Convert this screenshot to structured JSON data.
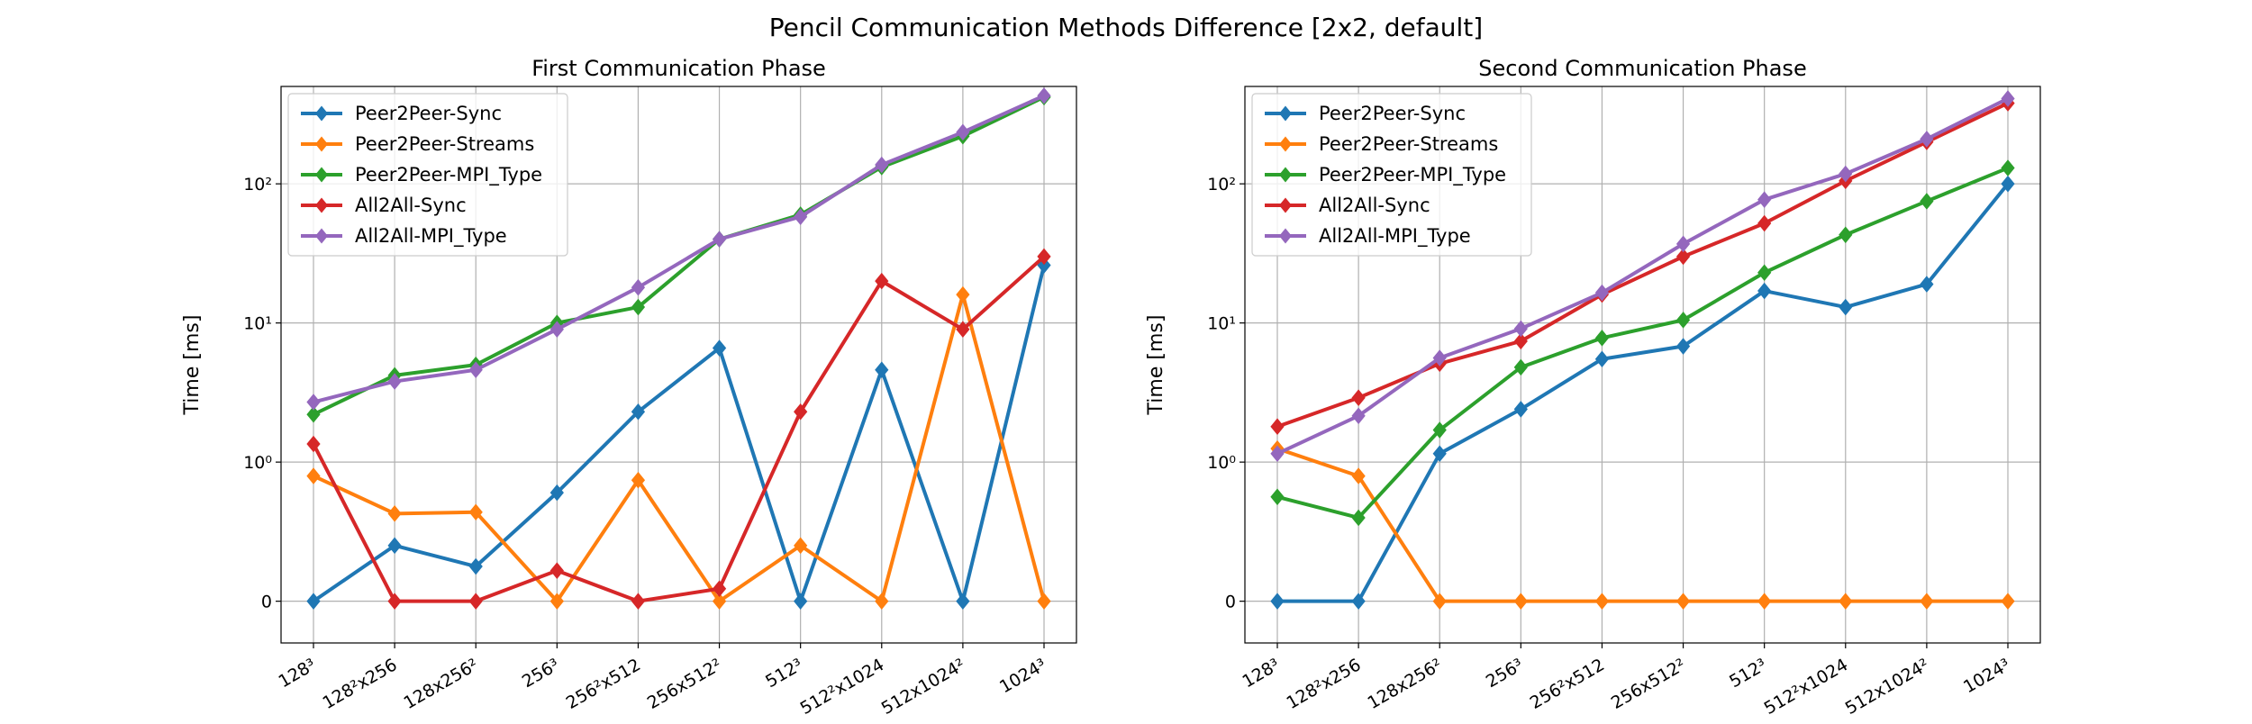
{
  "suptitle": "Pencil Communication Methods Difference [2x2, default]",
  "chart_data": [
    {
      "type": "line",
      "title": "First Communication Phase",
      "ylabel": "Time [ms]",
      "xlabel": "",
      "yscale": "symlog",
      "grid": true,
      "legend_position": "upper-left",
      "categories": [
        "128³",
        "128²x256",
        "128x256²",
        "256³",
        "256²x512",
        "256x512²",
        "512³",
        "512²x1024",
        "512x1024²",
        "1024³"
      ],
      "y_ticks": [
        {
          "value": 0,
          "label": "0"
        },
        {
          "value": 1,
          "label": "10⁰"
        },
        {
          "value": 10,
          "label": "10¹"
        },
        {
          "value": 100,
          "label": "10²"
        }
      ],
      "series": [
        {
          "name": "Peer2Peer-Sync",
          "color": "#1f77b4",
          "values": [
            0,
            0.4,
            0.25,
            0.78,
            2.3,
            6.6,
            0,
            4.6,
            0,
            26
          ]
        },
        {
          "name": "Peer2Peer-Streams",
          "color": "#ff7f0e",
          "values": [
            0.9,
            0.63,
            0.64,
            0,
            0.87,
            0,
            0.4,
            0,
            16,
            0
          ]
        },
        {
          "name": "Peer2Peer-MPI_Type",
          "color": "#2ca02c",
          "values": [
            2.2,
            4.2,
            5.0,
            10,
            13,
            40,
            60,
            132,
            220,
            420
          ]
        },
        {
          "name": "All2All-Sync",
          "color": "#d62728",
          "values": [
            1.35,
            0,
            0,
            0.22,
            0,
            0.09,
            2.3,
            20,
            9,
            30
          ]
        },
        {
          "name": "All2All-MPI_Type",
          "color": "#9467bd",
          "values": [
            2.7,
            3.8,
            4.6,
            9,
            18,
            40,
            58,
            137,
            235,
            430
          ]
        }
      ]
    },
    {
      "type": "line",
      "title": "Second Communication Phase",
      "ylabel": "Time [ms]",
      "xlabel": "",
      "yscale": "symlog",
      "grid": true,
      "legend_position": "upper-left",
      "categories": [
        "128³",
        "128²x256",
        "128x256²",
        "256³",
        "256²x512",
        "256x512²",
        "512³",
        "512²x1024",
        "512x1024²",
        "1024³"
      ],
      "y_ticks": [
        {
          "value": 0,
          "label": "0"
        },
        {
          "value": 1,
          "label": "10⁰"
        },
        {
          "value": 10,
          "label": "10¹"
        },
        {
          "value": 100,
          "label": "10²"
        }
      ],
      "series": [
        {
          "name": "Peer2Peer-Sync",
          "color": "#1f77b4",
          "values": [
            0,
            0,
            1.15,
            2.4,
            5.5,
            6.8,
            17,
            13,
            19,
            100
          ]
        },
        {
          "name": "Peer2Peer-Streams",
          "color": "#ff7f0e",
          "values": [
            1.25,
            0.9,
            0,
            0,
            0,
            0,
            0,
            0,
            0,
            0
          ]
        },
        {
          "name": "Peer2Peer-MPI_Type",
          "color": "#2ca02c",
          "values": [
            0.75,
            0.6,
            1.7,
            4.8,
            7.8,
            10.5,
            23,
            43,
            75,
            130
          ]
        },
        {
          "name": "All2All-Sync",
          "color": "#d62728",
          "values": [
            1.8,
            2.9,
            5.1,
            7.4,
            16,
            30,
            52,
            105,
            200,
            380
          ]
        },
        {
          "name": "All2All-MPI_Type",
          "color": "#9467bd",
          "values": [
            1.15,
            2.15,
            5.6,
            9.1,
            16.5,
            37,
            77,
            118,
            210,
            410
          ]
        }
      ]
    }
  ]
}
